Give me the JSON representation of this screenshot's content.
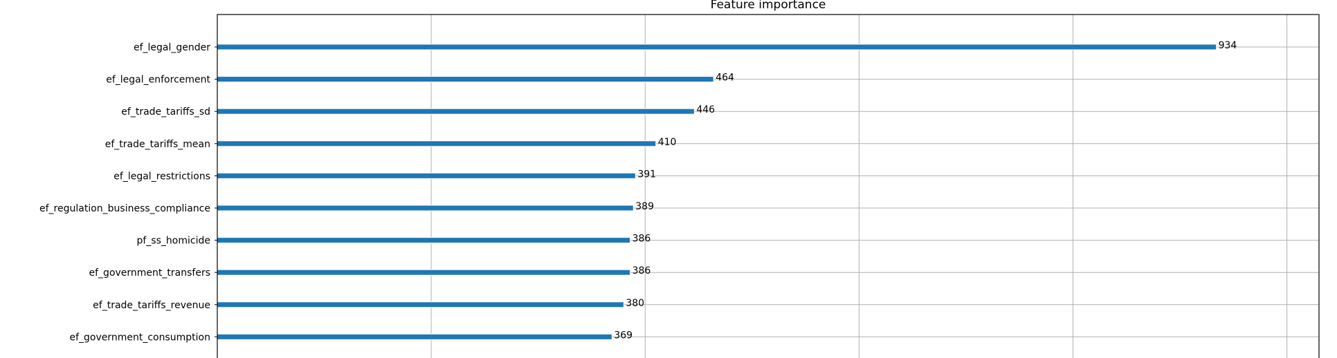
{
  "chart_data": {
    "type": "bar",
    "orientation": "horizontal",
    "title": "Feature importance",
    "xlabel": "",
    "ylabel": "",
    "xlim": [
      0,
      1030
    ],
    "grid": true,
    "bar_color": "#1f77b4",
    "categories": [
      "ef_legal_gender",
      "ef_legal_enforcement",
      "ef_trade_tariffs_sd",
      "ef_trade_tariffs_mean",
      "ef_legal_restrictions",
      "ef_regulation_business_compliance",
      "pf_ss_homicide",
      "ef_government_transfers",
      "ef_trade_tariffs_revenue",
      "ef_government_consumption"
    ],
    "values": [
      934,
      464,
      446,
      410,
      391,
      389,
      386,
      386,
      380,
      369
    ]
  }
}
